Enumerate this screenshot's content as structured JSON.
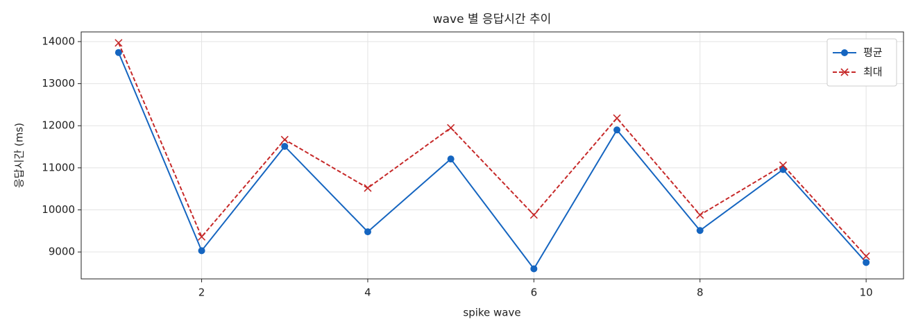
{
  "chart_data": {
    "type": "line",
    "title": "wave 별 응답시간 추이",
    "xlabel": "spike wave",
    "ylabel": "응답시간 (ms)",
    "x": [
      1,
      2,
      3,
      4,
      5,
      6,
      7,
      8,
      9,
      10
    ],
    "series": [
      {
        "name": "평균",
        "color": "#1565c0",
        "marker": "o",
        "linestyle": "solid",
        "values": [
          13740,
          9030,
          11510,
          9480,
          11210,
          8600,
          11900,
          9510,
          10960,
          8750
        ]
      },
      {
        "name": "최대",
        "color": "#c62828",
        "marker": "x",
        "linestyle": "dashed",
        "values": [
          13970,
          9360,
          11670,
          10520,
          11950,
          9880,
          12180,
          9880,
          11060,
          8900
        ]
      }
    ],
    "xlim": [
      0.55,
      10.45
    ],
    "ylim": [
      8360,
      14230
    ],
    "xticks": [
      2,
      4,
      6,
      8,
      10
    ],
    "yticks": [
      9000,
      10000,
      11000,
      12000,
      13000,
      14000
    ],
    "grid": true,
    "legend": "upper right"
  }
}
